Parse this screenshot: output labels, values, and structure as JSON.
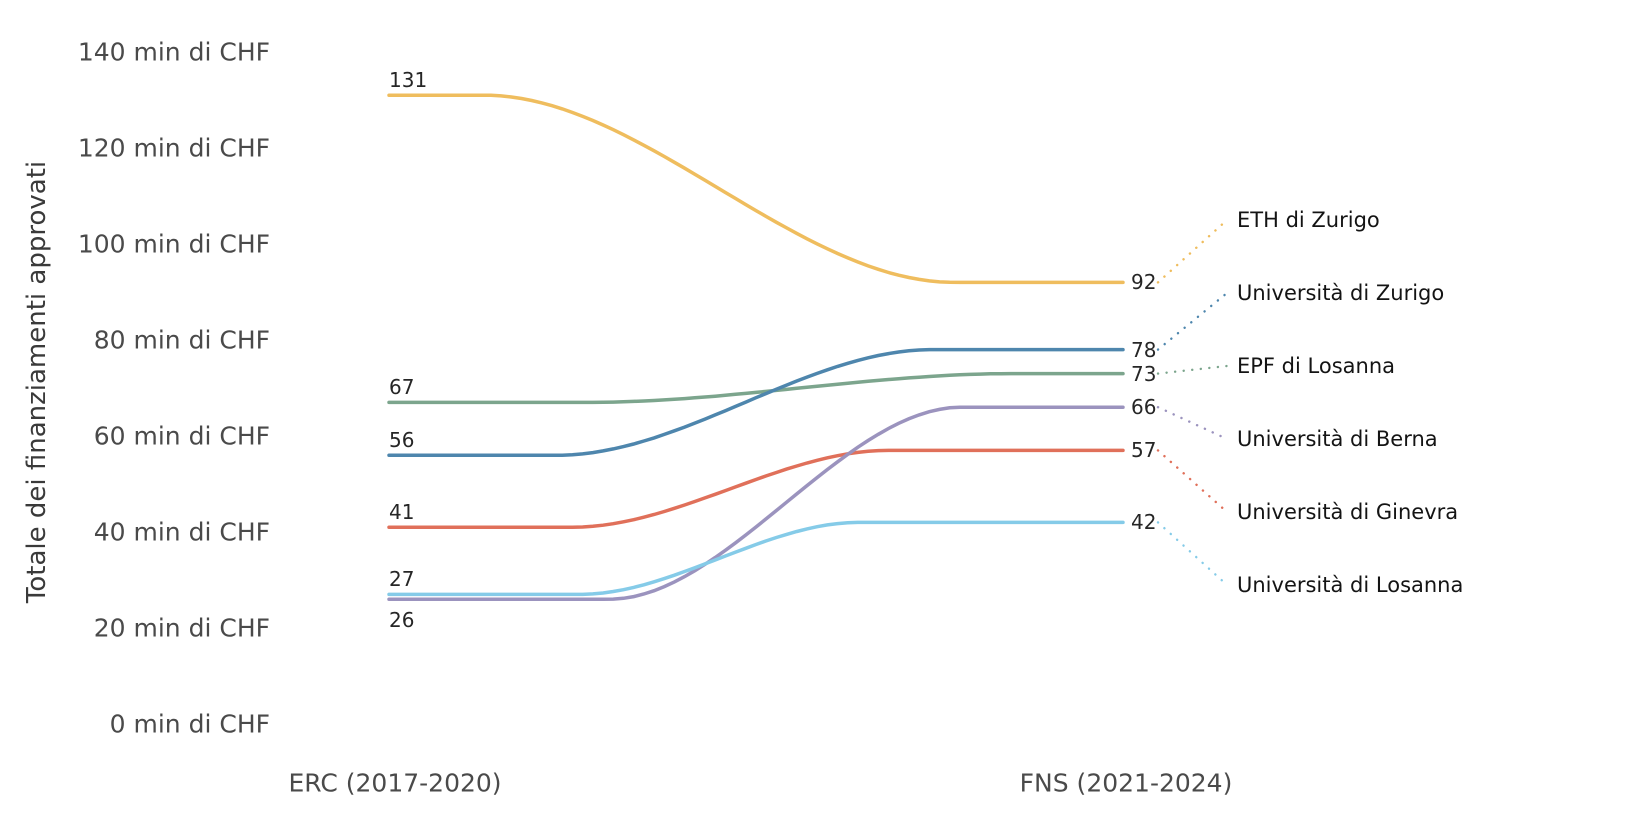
{
  "chart_data": {
    "type": "line",
    "subtype": "slope-bump-chart",
    "title": "",
    "xlabel": "",
    "ylabel": "Totale dei finanziamenti approvati",
    "x_categories": [
      "ERC (2017-2020)",
      "FNS (2021-2024)"
    ],
    "ylim": [
      0,
      140
    ],
    "grid": false,
    "legend_position": "right-inline-labels",
    "yticks": [
      {
        "value": 0,
        "label": "0 min di CHF"
      },
      {
        "value": 20,
        "label": "20 min di CHF"
      },
      {
        "value": 40,
        "label": "40 min di CHF"
      },
      {
        "value": 60,
        "label": "60 min di CHF"
      },
      {
        "value": 80,
        "label": "80 min di CHF"
      },
      {
        "value": 100,
        "label": "100 min di CHF"
      },
      {
        "value": 120,
        "label": "120 min di CHF"
      },
      {
        "value": 140,
        "label": "140 min di CHF"
      }
    ],
    "series": [
      {
        "name": "ETH di Zurigo",
        "color": "#EFBD5E",
        "erc": 131,
        "fns": 92,
        "curve_window": [
          0.13,
          0.77
        ],
        "erc_label_side": "above",
        "z": 0
      },
      {
        "name": "Università di Zurigo",
        "color": "#4E86AD",
        "erc": 56,
        "fns": 78,
        "curve_window": [
          0.23,
          0.74
        ],
        "erc_label_side": "above",
        "z": 2
      },
      {
        "name": "EPF di Losanna",
        "color": "#7CA58D",
        "erc": 67,
        "fns": 73,
        "curve_window": [
          0.27,
          0.85
        ],
        "erc_label_side": "above",
        "z": 1
      },
      {
        "name": "Università di Berna",
        "color": "#9B93BE",
        "erc": 26,
        "fns": 66,
        "curve_window": [
          0.3,
          0.78
        ],
        "erc_label_side": "below",
        "z": 4
      },
      {
        "name": "Università di Ginevra",
        "color": "#E0705A",
        "erc": 41,
        "fns": 57,
        "curve_window": [
          0.25,
          0.68
        ],
        "erc_label_side": "above",
        "z": 3
      },
      {
        "name": "Università di Losanna",
        "color": "#85CBE8",
        "erc": 27,
        "fns": 42,
        "curve_window": [
          0.26,
          0.64
        ],
        "erc_label_side": "above",
        "z": 5
      }
    ]
  }
}
